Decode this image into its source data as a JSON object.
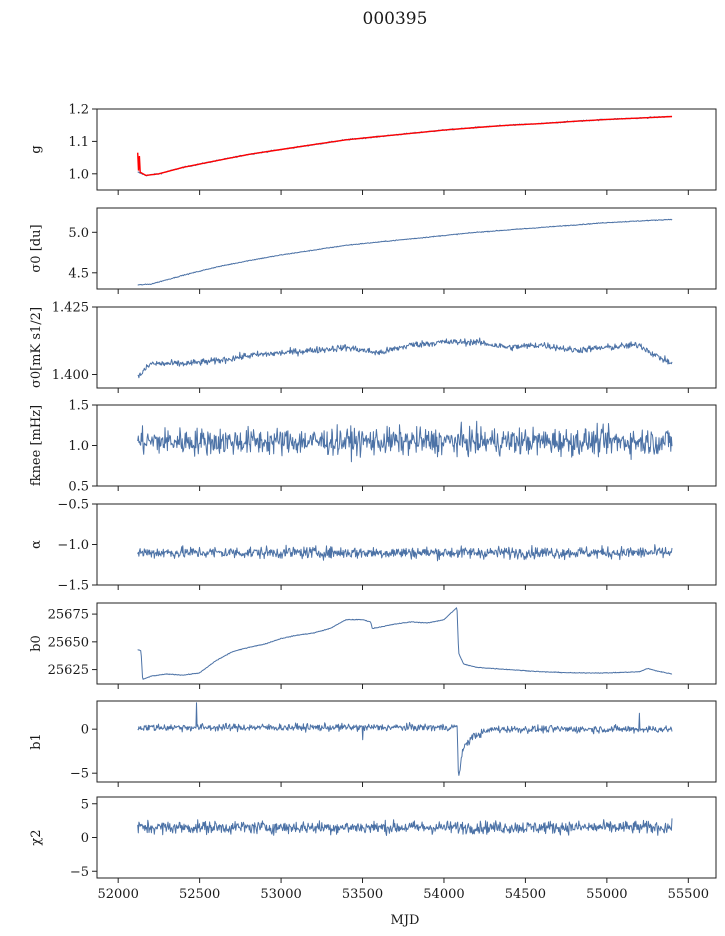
{
  "figure": {
    "title": "000395",
    "xlabel": "MJD"
  },
  "colors": {
    "series": "#4c72a6",
    "fit": "#ff0000",
    "axes": "#222222"
  },
  "chart_data": [
    {
      "id": "g",
      "type": "line",
      "ylabel": "g",
      "ylim": [
        0.95,
        1.2
      ],
      "yticks": [
        1.0,
        1.1,
        1.2
      ],
      "ytick_labels": [
        "1.0",
        "1.1",
        "1.2"
      ],
      "series": [
        {
          "noise": 0.002,
          "x": [
            52120,
            52170,
            52250,
            52400,
            52600,
            52800,
            53000,
            53200,
            53400,
            53600,
            53800,
            54000,
            54200,
            54400,
            54600,
            54800,
            55000,
            55200,
            55400
          ],
          "y": [
            1.005,
            0.995,
            1.0,
            1.02,
            1.04,
            1.06,
            1.075,
            1.09,
            1.105,
            1.115,
            1.125,
            1.135,
            1.143,
            1.15,
            1.155,
            1.162,
            1.168,
            1.172,
            1.177
          ]
        },
        {
          "name": "fit",
          "color": "fit",
          "x": [
            52120,
            52125,
            52130,
            52135,
            52170,
            52250,
            52400,
            52600,
            52800,
            53000,
            53200,
            53400,
            53600,
            53800,
            54000,
            54200,
            54400,
            54600,
            54800,
            55000,
            55200,
            55400
          ],
          "y": [
            1.065,
            1.01,
            1.055,
            1.005,
            0.995,
            1.0,
            1.02,
            1.04,
            1.06,
            1.075,
            1.09,
            1.105,
            1.115,
            1.125,
            1.135,
            1.143,
            1.15,
            1.155,
            1.162,
            1.168,
            1.172,
            1.177
          ]
        }
      ]
    },
    {
      "id": "sigma0_du",
      "type": "line",
      "ylabel": "σ0 [du]",
      "ylim": [
        4.3,
        5.3
      ],
      "yticks": [
        4.5,
        5.0
      ],
      "ytick_labels": [
        "4.5",
        "5.0"
      ],
      "series": [
        {
          "noise": 0.005,
          "x": [
            52120,
            52200,
            52400,
            52600,
            52800,
            53000,
            53200,
            53400,
            53600,
            53800,
            54000,
            54200,
            54400,
            54600,
            54800,
            55000,
            55200,
            55400
          ],
          "y": [
            4.35,
            4.36,
            4.47,
            4.57,
            4.65,
            4.72,
            4.78,
            4.84,
            4.88,
            4.92,
            4.96,
            5.0,
            5.03,
            5.06,
            5.09,
            5.12,
            5.14,
            5.16
          ]
        }
      ]
    },
    {
      "id": "sigma0_mks",
      "type": "line",
      "ylabel": "σ0[mK s1/2]",
      "ylim": [
        1.395,
        1.425
      ],
      "yticks": [
        1.4,
        1.425
      ],
      "ytick_labels": [
        "1.400",
        "1.425"
      ],
      "series": [
        {
          "noise": 0.0012,
          "x": [
            52120,
            52200,
            52400,
            52600,
            52800,
            53000,
            53200,
            53400,
            53600,
            53800,
            54000,
            54200,
            54400,
            54600,
            54800,
            55000,
            55200,
            55300,
            55400
          ],
          "y": [
            1.399,
            1.404,
            1.404,
            1.405,
            1.407,
            1.408,
            1.409,
            1.41,
            1.408,
            1.411,
            1.412,
            1.412,
            1.41,
            1.411,
            1.409,
            1.41,
            1.411,
            1.407,
            1.404
          ]
        }
      ]
    },
    {
      "id": "fknee",
      "type": "line",
      "ylabel": "fknee [mHz]",
      "ylim": [
        0.5,
        1.5
      ],
      "yticks": [
        0.5,
        1.0,
        1.5
      ],
      "ytick_labels": [
        "0.5",
        "1.0",
        "1.5"
      ],
      "series": [
        {
          "noise": 0.16,
          "x": [
            52120,
            55400
          ],
          "y": [
            1.05,
            1.05
          ]
        }
      ]
    },
    {
      "id": "alpha",
      "type": "line",
      "ylabel": "α",
      "ylim": [
        -1.5,
        -0.5
      ],
      "yticks": [
        -1.5,
        -1.0,
        -0.5
      ],
      "ytick_labels": [
        "−1.5",
        "−1.0",
        "−0.5"
      ],
      "series": [
        {
          "noise": 0.07,
          "x": [
            52120,
            55400
          ],
          "y": [
            -1.1,
            -1.1
          ]
        }
      ]
    },
    {
      "id": "b0",
      "type": "line",
      "ylabel": "b0",
      "ylim": [
        25612,
        25685
      ],
      "yticks": [
        25625,
        25650,
        25675
      ],
      "ytick_labels": [
        "25625",
        "25650",
        "25675"
      ],
      "series": [
        {
          "noise": 0.3,
          "x": [
            52120,
            52140,
            52150,
            52200,
            52300,
            52400,
            52500,
            52600,
            52700,
            52800,
            52900,
            53000,
            53100,
            53200,
            53300,
            53400,
            53500,
            53550,
            53560,
            53700,
            53800,
            53900,
            54000,
            54080,
            54090,
            54120,
            54200,
            54400,
            54600,
            54800,
            55000,
            55200,
            55250,
            55300,
            55400
          ],
          "y": [
            25643,
            25642,
            25616,
            25619,
            25621,
            25620,
            25622,
            25633,
            25641,
            25645,
            25648,
            25653,
            25656,
            25658,
            25662,
            25670,
            25670,
            25668,
            25662,
            25666,
            25668,
            25667,
            25670,
            25681,
            25640,
            25630,
            25627,
            25625,
            25623,
            25622,
            25622,
            25623,
            25626,
            25624,
            25621
          ]
        }
      ]
    },
    {
      "id": "b1",
      "type": "line",
      "ylabel": "b1",
      "ylim": [
        -6,
        3.2
      ],
      "yticks": [
        -5,
        0
      ],
      "ytick_labels": [
        "−5",
        "0"
      ],
      "series": [
        {
          "noise": 0.4,
          "spikes": [
            [
              52480,
              3.0
            ],
            [
              53500,
              -1.2
            ],
            [
              55200,
              1.8
            ]
          ],
          "x": [
            52120,
            54050,
            54080,
            54090,
            54120,
            54180,
            54300,
            55400
          ],
          "y": [
            0.2,
            0.2,
            0.4,
            -5.5,
            -2.0,
            -0.8,
            0.0,
            0.0
          ]
        }
      ]
    },
    {
      "id": "chi2",
      "type": "line",
      "ylabel": "χ2",
      "ylim": [
        -6,
        6
      ],
      "yticks": [
        -5,
        0,
        5
      ],
      "ytick_labels": [
        "−5",
        "0",
        "5"
      ],
      "series": [
        {
          "noise": 0.9,
          "x": [
            52120,
            55400
          ],
          "y": [
            1.5,
            1.5
          ]
        }
      ]
    }
  ],
  "xaxis": {
    "xlim": [
      51870,
      55670
    ],
    "xticks": [
      52000,
      52500,
      53000,
      53500,
      54000,
      54500,
      55000,
      55500
    ],
    "xtick_labels": [
      "52000",
      "52500",
      "53000",
      "53500",
      "54000",
      "54500",
      "55000",
      "55500"
    ]
  }
}
